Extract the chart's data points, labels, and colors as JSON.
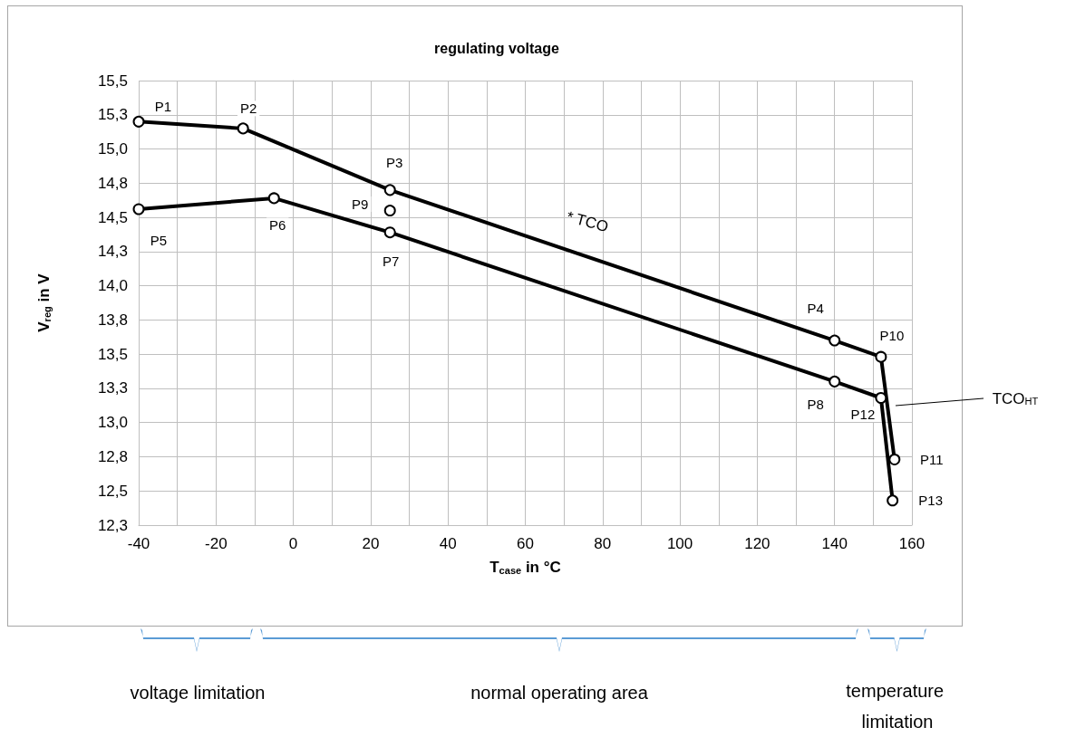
{
  "chart_data": {
    "type": "line",
    "title": "regulating voltage",
    "xlabel": "T$_{case}$ in °C",
    "ylabel": "V$_{reg}$ in V",
    "series": [
      {
        "color": "#000000",
        "x": [
          -40,
          -13,
          25,
          140,
          152,
          155.5
        ],
        "values": [
          15.2,
          15.15,
          14.7,
          13.6,
          13.48,
          12.73
        ]
      },
      {
        "color": "#000000",
        "x": [
          -40,
          -5,
          25,
          140,
          152,
          155
        ],
        "values": [
          14.56,
          14.64,
          14.39,
          13.3,
          13.18,
          12.43
        ]
      },
      {
        "color": "#000000",
        "x": [
          25
        ],
        "values": [
          14.55
        ]
      }
    ],
    "xlim": [
      -40,
      160
    ],
    "xticks": [
      -40,
      {
        "value": -30,
        "label": null
      },
      -20,
      {
        "value": -10,
        "label": null
      },
      0,
      {
        "value": 10,
        "label": null
      },
      20,
      {
        "value": 30,
        "label": null
      },
      40,
      {
        "value": 50,
        "label": null
      },
      60,
      {
        "value": 70,
        "label": null
      },
      80,
      {
        "value": 90,
        "label": null
      },
      100,
      {
        "value": 110,
        "label": null
      },
      120,
      {
        "value": 130,
        "label": null
      },
      140,
      {
        "value": 150,
        "label": null
      },
      160
    ],
    "ylim": [
      12.25,
      15.5
    ],
    "yticks": [
      {
        "value": 12.25,
        "label": "12,3"
      },
      {
        "value": 12.5,
        "label": "12,5"
      },
      {
        "value": 12.75,
        "label": "12,8"
      },
      {
        "value": 13,
        "label": "13,0"
      },
      {
        "value": 13.25,
        "label": "13,3"
      },
      {
        "value": 13.5,
        "label": "13,5"
      },
      {
        "value": 13.75,
        "label": "13,8"
      },
      {
        "value": 14,
        "label": "14,0"
      },
      {
        "value": 14.25,
        "label": "14,3"
      },
      {
        "value": 14.5,
        "label": "14,5"
      },
      {
        "value": 14.75,
        "label": "14,8"
      },
      {
        "value": 15,
        "label": "15,0"
      },
      {
        "value": 15.25,
        "label": "15,3"
      },
      {
        "value": 15.5,
        "label": "15,5"
      }
    ],
    "annotations": [
      {
        "text": "P1",
        "x": -40,
        "y": 15.2
      },
      {
        "text": "P2",
        "x": -13,
        "y": 15.15
      },
      {
        "text": "P3",
        "x": 25,
        "y": 14.7
      },
      {
        "text": "P4",
        "x": 140,
        "y": 13.6
      },
      {
        "text": "P10",
        "x": 152,
        "y": 13.48
      },
      {
        "text": "P11",
        "x": 155.5,
        "y": 12.73
      },
      {
        "text": "P5",
        "x": -40,
        "y": 14.56
      },
      {
        "text": "P6",
        "x": -5,
        "y": 14.64
      },
      {
        "text": "P7",
        "x": 25,
        "y": 14.39
      },
      {
        "text": "P8",
        "x": 140,
        "y": 13.3
      },
      {
        "text": "P12",
        "x": 152,
        "y": 13.18
      },
      {
        "text": "P13",
        "x": 155,
        "y": 12.43
      },
      {
        "text": "P9",
        "x": 25,
        "y": 14.55
      },
      "* TCO",
      "TCO$_{HT}$",
      "voltage limitation",
      "normal operating area",
      "temperature limitation"
    ],
    "grid": true,
    "marker": "circle",
    "line_style": "solid"
  }
}
